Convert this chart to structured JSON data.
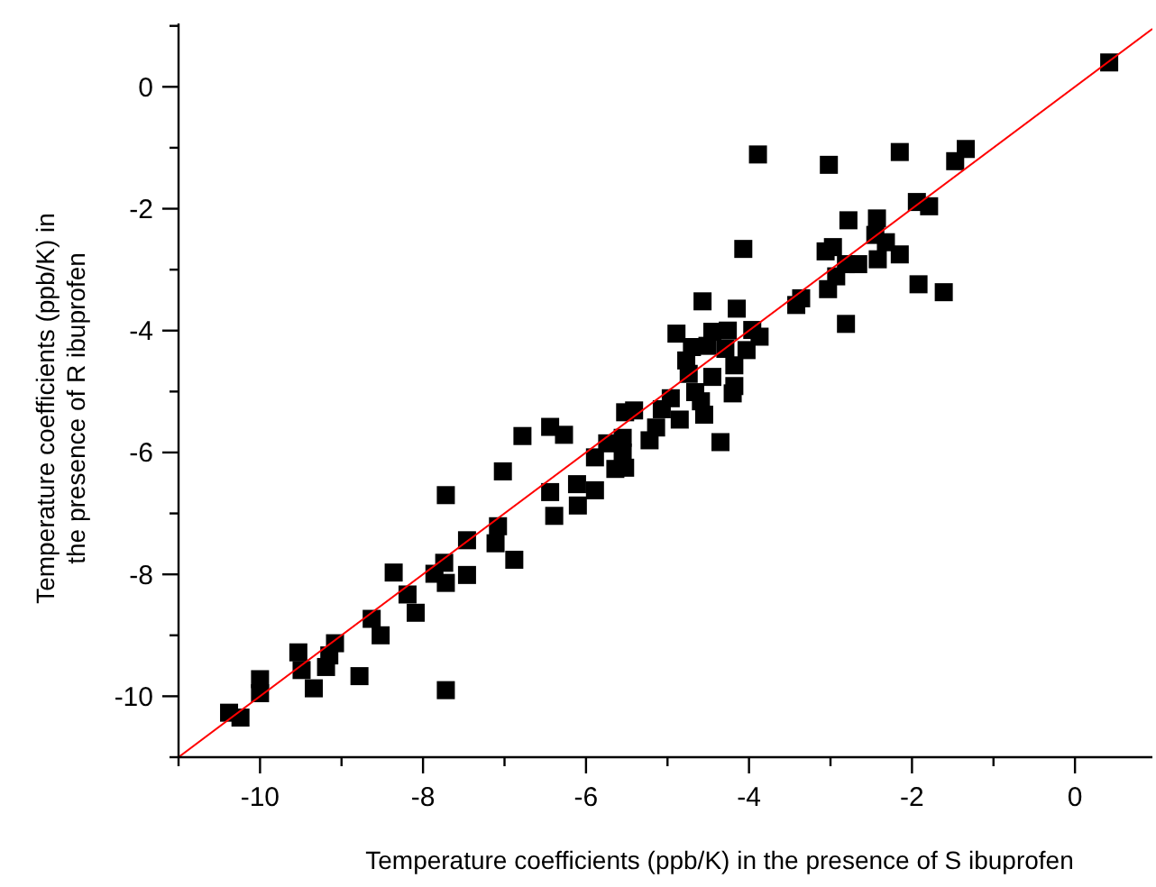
{
  "chart_data": {
    "type": "scatter",
    "xlabel": "Temperature coefficients (ppb/K) in the presence of S ibuprofen",
    "ylabel": "Temperature coefficients (ppb/K) in\nthe presence of R ibuprofen",
    "xlim": [
      -11,
      0.95
    ],
    "ylim": [
      -11,
      1.04
    ],
    "xticks": [
      {
        "value": -11,
        "label": null
      },
      -10,
      {
        "value": -9,
        "label": null
      },
      -8,
      {
        "value": -7,
        "label": null
      },
      -6,
      {
        "value": -5,
        "label": null
      },
      -4,
      {
        "value": -3,
        "label": null
      },
      -2,
      {
        "value": -1,
        "label": null
      },
      0
    ],
    "yticks": [
      {
        "value": -11,
        "label": null
      },
      -10,
      {
        "value": -9,
        "label": null
      },
      -8,
      {
        "value": -7,
        "label": null
      },
      -6,
      {
        "value": -5,
        "label": null
      },
      -4,
      {
        "value": -3,
        "label": null
      },
      -2,
      {
        "value": -1,
        "label": null
      },
      0,
      {
        "value": 1,
        "label": null
      }
    ],
    "grid": false,
    "marker": "square",
    "series": [
      {
        "color": "#000000",
        "x": [
          0.42,
          -1.34,
          -1.47,
          -2.15,
          -3.02,
          -3.89,
          -1.94,
          -1.79,
          -2.78,
          -2.43,
          -2.45,
          -2.32,
          -2.97,
          -3.06,
          -4.07,
          -2.15,
          -2.42,
          -2.66,
          -2.81,
          -2.93,
          -3.03,
          -1.92,
          -1.61,
          -3.36,
          -3.42,
          -2.81,
          -4.57,
          -4.15,
          -4.89,
          -4.45,
          -4.26,
          -3.96,
          -3.87,
          -4.7,
          -4.51,
          -4.03,
          -4.77,
          -4.29,
          -4.18,
          -4.74,
          -4.45,
          -4.18,
          -4.2,
          -4.96,
          -4.66,
          -4.59,
          -4.55,
          -4.85,
          -5.07,
          -5.41,
          -5.52,
          -5.14,
          -5.22,
          -4.35,
          -6.44,
          -6.27,
          -5.74,
          -5.55,
          -5.89,
          -5.55,
          -5.64,
          -5.52,
          -6.44,
          -6.11,
          -5.89,
          -6.1,
          -6.39,
          -6.78,
          -7.02,
          -7.72,
          -7.08,
          -7.46,
          -7.11,
          -6.88,
          -8.36,
          -7.74,
          -7.86,
          -7.72,
          -7.46,
          -8.19,
          -8.09,
          -8.63,
          -8.52,
          -9.08,
          -9.15,
          -9.53,
          -9.49,
          -9.19,
          -8.78,
          -9.34,
          -10.0,
          -10.0,
          -7.72,
          -10.38,
          -10.24
        ],
        "values": [
          0.4,
          -1.02,
          -1.22,
          -1.07,
          -1.28,
          -1.11,
          -1.89,
          -1.96,
          -2.19,
          -2.16,
          -2.43,
          -2.55,
          -2.63,
          -2.7,
          -2.66,
          -2.75,
          -2.83,
          -2.91,
          -2.91,
          -3.11,
          -3.32,
          -3.24,
          -3.37,
          -3.47,
          -3.58,
          -3.89,
          -3.52,
          -3.64,
          -4.05,
          -4.02,
          -4.0,
          -3.99,
          -4.1,
          -4.27,
          -4.25,
          -4.32,
          -4.49,
          -4.3,
          -4.57,
          -4.71,
          -4.76,
          -4.91,
          -5.03,
          -5.11,
          -5.01,
          -5.16,
          -5.38,
          -5.46,
          -5.29,
          -5.31,
          -5.34,
          -5.59,
          -5.8,
          -5.83,
          -5.58,
          -5.71,
          -5.85,
          -5.76,
          -6.08,
          -6.0,
          -6.27,
          -6.25,
          -6.65,
          -6.52,
          -6.62,
          -6.87,
          -7.04,
          -5.73,
          -6.31,
          -6.7,
          -7.21,
          -7.44,
          -7.49,
          -7.76,
          -7.97,
          -7.81,
          -7.99,
          -8.14,
          -8.01,
          -8.33,
          -8.63,
          -8.73,
          -9.0,
          -9.13,
          -9.33,
          -9.28,
          -9.57,
          -9.52,
          -9.67,
          -9.87,
          -9.72,
          -9.95,
          -9.9,
          -10.27,
          -10.35
        ]
      },
      {
        "type": "line",
        "color": "#ff0000",
        "marker": "none",
        "line_style": "solid",
        "x": [
          -11,
          0.95
        ],
        "values": [
          -11,
          0.95
        ]
      }
    ]
  }
}
